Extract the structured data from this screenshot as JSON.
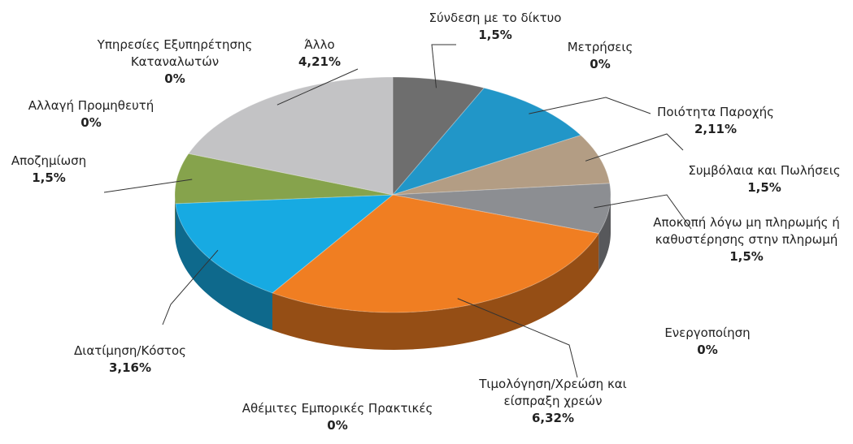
{
  "chart_data": {
    "type": "pie3d",
    "categories": [
      "Σύνδεση με το δίκτυο",
      "Μετρήσεις",
      "Ποιότητα Παροχής",
      "Συμβόλαια και Πωλήσεις",
      "Αποκοπή λόγω μη πληρωμής ή καθυστέρησης στην πληρωμή",
      "Ενεργοποίηση",
      "Τιμολόγηση/Χρεώση και είσπραξη χρεών",
      "Αθέμιτες Εμπορικές Πρακτικές",
      "Διατίμηση/Κόστος",
      "Αποζημίωση",
      "Αλλαγή Προμηθευτή",
      "Υπηρεσίες Εξυπηρέτησης Καταναλωτών",
      "Άλλο"
    ],
    "values": [
      1.5,
      0,
      2.11,
      1.5,
      1.5,
      0,
      6.32,
      0,
      3.16,
      1.5,
      0,
      0,
      4.21
    ],
    "value_labels": [
      "1,5%",
      "0%",
      "2,11%",
      "1,5%",
      "1,5%",
      "0%",
      "6,32%",
      "0%",
      "3,16%",
      "1,5%",
      "0%",
      "0%",
      "4,21%"
    ],
    "colors": [
      "#6e6e6e",
      "#4f81bd",
      "#2196c8",
      "#b39d84",
      "#8c8e92",
      "#9bbb59",
      "#f07e22",
      "#8064a2",
      "#17aae2",
      "#86a34c",
      "#4bacc6",
      "#f79646",
      "#c3c3c5"
    ]
  }
}
